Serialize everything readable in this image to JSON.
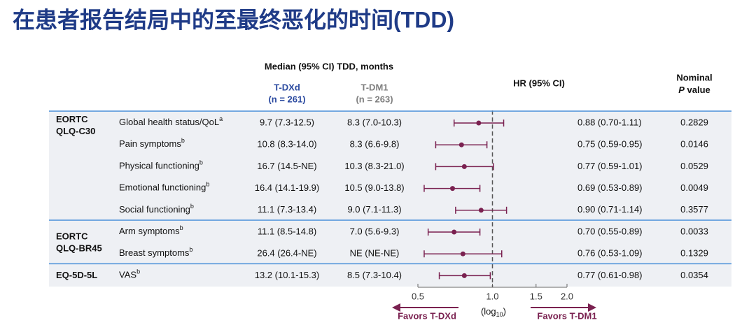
{
  "chart_data": {
    "type": "forest",
    "title": "在患者报告结局中的至最终恶化的时间(TDD)",
    "header": {
      "median": "Median (95% CI) TDD, months",
      "arm1": "T-DXd",
      "arm1_n": "(n = 261)",
      "arm2": "T-DM1",
      "arm2_n": "(n = 263)",
      "hr": "HR (95% CI)",
      "p_top": "Nominal",
      "p_italic": "P",
      "p_rest": " value"
    },
    "groups": [
      {
        "name": [
          "EORTC",
          "QLQ-C30"
        ],
        "rows": [
          {
            "label": "Global health status/QoL",
            "sup": "a",
            "arm1": "9.7 (7.3-12.5)",
            "arm2": "8.3 (7.0-10.3)",
            "hr": 0.88,
            "lower": 0.7,
            "upper": 1.11,
            "hr_label": "0.88 (0.70-1.11)",
            "p": "0.2829"
          },
          {
            "label": "Pain symptoms",
            "sup": "b",
            "arm1": "10.8 (8.3-14.0)",
            "arm2": "8.3 (6.6-9.8)",
            "hr": 0.75,
            "lower": 0.59,
            "upper": 0.95,
            "hr_label": "0.75 (0.59-0.95)",
            "p": "0.0146"
          },
          {
            "label": "Physical functioning",
            "sup": "b",
            "arm1": "16.7 (14.5-NE)",
            "arm2": "10.3 (8.3-21.0)",
            "hr": 0.77,
            "lower": 0.59,
            "upper": 1.01,
            "hr_label": "0.77 (0.59-1.01)",
            "p": "0.0529"
          },
          {
            "label": "Emotional functioning",
            "sup": "b",
            "arm1": "16.4 (14.1-19.9)",
            "arm2": "10.5 (9.0-13.8)",
            "hr": 0.69,
            "lower": 0.53,
            "upper": 0.89,
            "hr_label": "0.69 (0.53-0.89)",
            "p": "0.0049"
          },
          {
            "label": "Social functioning",
            "sup": "b",
            "arm1": "11.1 (7.3-13.4)",
            "arm2": "9.0 (7.1-11.3)",
            "hr": 0.9,
            "lower": 0.71,
            "upper": 1.14,
            "hr_label": "0.90 (0.71-1.14)",
            "p": "0.3577"
          }
        ]
      },
      {
        "name": [
          "EORTC",
          "QLQ-BR45"
        ],
        "rows": [
          {
            "label": "Arm symptoms",
            "sup": "b",
            "arm1": "11.1 (8.5-14.8)",
            "arm2": "7.0 (5.6-9.3)",
            "hr": 0.7,
            "lower": 0.55,
            "upper": 0.89,
            "hr_label": "0.70 (0.55-0.89)",
            "p": "0.0033"
          },
          {
            "label": "Breast symptoms",
            "sup": "b",
            "arm1": "26.4 (26.4-NE)",
            "arm2": "NE (NE-NE)",
            "hr": 0.76,
            "lower": 0.53,
            "upper": 1.09,
            "hr_label": "0.76 (0.53-1.09)",
            "p": "0.1329"
          }
        ]
      },
      {
        "name": [
          "EQ-5D-5L"
        ],
        "rows": [
          {
            "label": "VAS",
            "sup": "b",
            "arm1": "13.2 (10.1-15.3)",
            "arm2": "8.5 (7.3-10.4)",
            "hr": 0.77,
            "lower": 0.61,
            "upper": 0.98,
            "hr_label": "0.77 (0.61-0.98)",
            "p": "0.0354"
          }
        ]
      }
    ],
    "xscale": "log",
    "xlim": [
      0.5,
      2.0
    ],
    "xticks": [
      0.5,
      {
        "value": 1,
        "label": "1.0"
      },
      1.5,
      {
        "value": 2,
        "label": "2.0"
      }
    ],
    "reference_line": 1,
    "xlabel": {
      "pre": "(log",
      "sub": "10",
      "post": ")"
    },
    "favors_left": "Favors T-DXd",
    "favors_right": "Favors T-DM1",
    "color": "#7a2150"
  }
}
